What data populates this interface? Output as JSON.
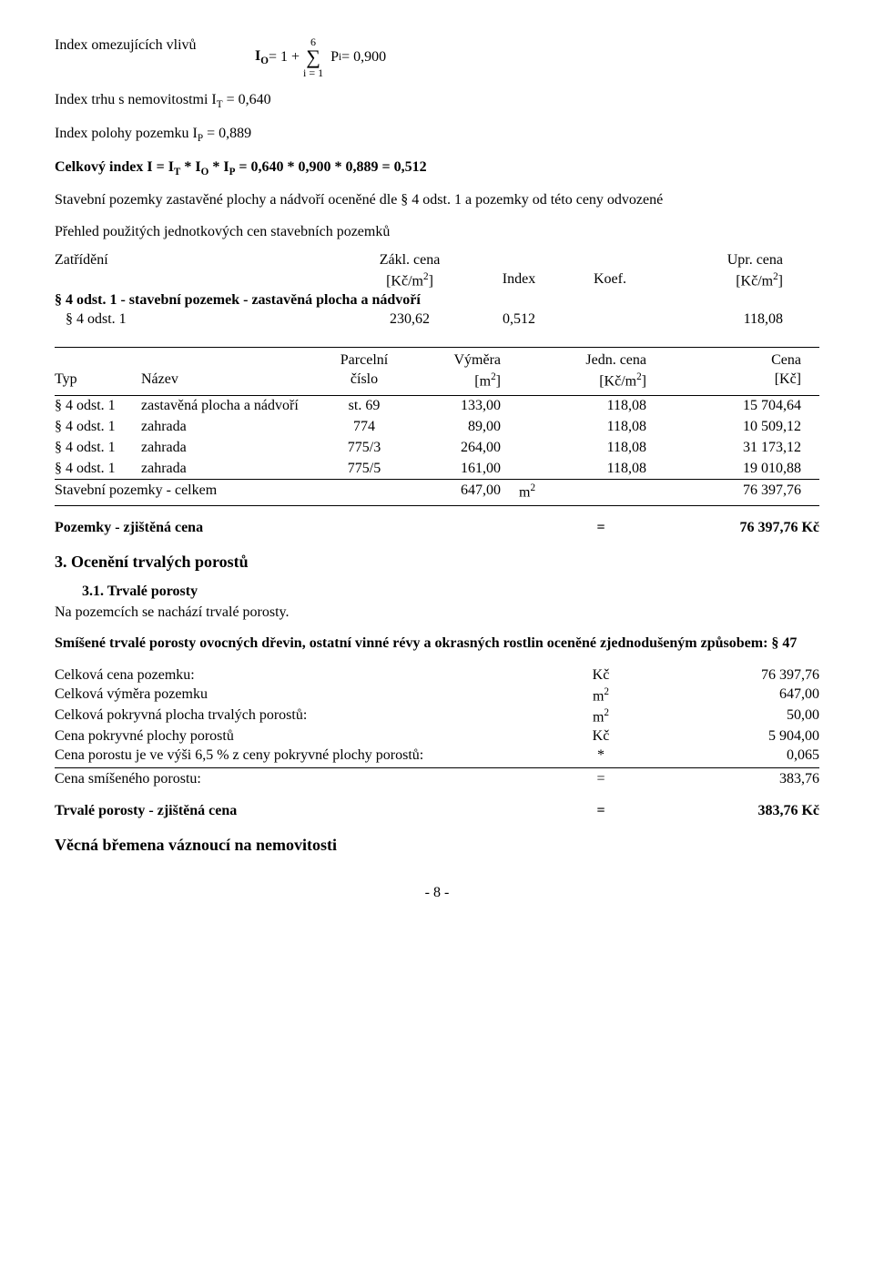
{
  "formula_io": {
    "label": "Index omezujících vlivů",
    "lhs": "I",
    "lhs_sub": "O",
    "eq": " = 1 + ",
    "sigma_top": "6",
    "sigma_bottom": "i = 1",
    "term": "P",
    "term_sub": "i",
    "rhs": " = 0,900"
  },
  "line_it": {
    "pre": "Index trhu s nemovitostmi I",
    "sub": "T",
    "post": " = 0,640"
  },
  "line_ip": {
    "pre": "Index polohy pozemku I",
    "sub": "P",
    "post": " = 0,889"
  },
  "line_celk": "Celkový index I = IT * IO * IP = 0,640 * 0,900 * 0,889 = 0,512",
  "line_celk_parts": {
    "p0": "Celkový index I = I",
    "s1": "T",
    "p1": " * I",
    "s2": "O",
    "p2": " * I",
    "s3": "P",
    "p3": " = 0,640 * 0,900 * 0,889 = 0,512"
  },
  "para_stav": "Stavební pozemky zastavěné plochy a nádvoří oceněné dle § 4 odst. 1 a pozemky od této ceny odvozené",
  "para_prehled": "Přehled použitých jednotkových cen stavebních pozemků",
  "t1": {
    "head": {
      "c0": "Zatřídění",
      "c1a": "Zákl. cena",
      "c1b": "[Kč/m",
      "c1sup": "2",
      "c1c": "]",
      "c2": "Index",
      "c3": "Koef.",
      "c4a": "Upr. cena",
      "c4b": "[Kč/m",
      "c4sup": "2",
      "c4c": "]"
    },
    "group": "§ 4 odst. 1 - stavební pozemek - zastavěná plocha a nádvoří",
    "row": {
      "c0": "   § 4 odst. 1",
      "c1": "230,62",
      "c2": "0,512",
      "c3": "",
      "c4": "118,08"
    }
  },
  "t2": {
    "head": {
      "c0": "Typ",
      "c1": "Název",
      "c2a": "Parcelní",
      "c2b": "číslo",
      "c3a": "Výměra",
      "c3b": "[m",
      "c3sup": "2",
      "c3c": "]",
      "c4a": "Jedn. cena",
      "c4b": "[Kč/m",
      "c4sup": "2",
      "c4c": "]",
      "c5a": "Cena",
      "c5b": "[Kč]"
    },
    "rows": [
      {
        "c0": "§ 4 odst. 1",
        "c1": "zastavěná plocha a nádvoří",
        "c2": "st. 69",
        "c3": "133,00",
        "c4": "118,08",
        "c5": "15 704,64"
      },
      {
        "c0": "§ 4 odst. 1",
        "c1": "zahrada",
        "c2": "774",
        "c3": "89,00",
        "c4": "118,08",
        "c5": "10 509,12"
      },
      {
        "c0": "§ 4 odst. 1",
        "c1": "zahrada",
        "c2": "775/3",
        "c3": "264,00",
        "c4": "118,08",
        "c5": "31 173,12"
      },
      {
        "c0": "§ 4 odst. 1",
        "c1": "zahrada",
        "c2": "775/5",
        "c3": "161,00",
        "c4": "118,08",
        "c5": "19 010,88"
      }
    ],
    "sum": {
      "label": "Stavební pozemky - celkem",
      "c3": "647,00",
      "unit": "m",
      "sup": "2",
      "c5": "76 397,76"
    }
  },
  "pozemky_line": {
    "label": "Pozemky - zjištěná cena",
    "eq": "=",
    "val": "76 397,76 Kč"
  },
  "sec3": "3. Ocenění trvalých porostů",
  "sec31": "3.1. Trvalé porosty",
  "sec31_text": "Na pozemcích se nachází trvalé porosty.",
  "smisene": "Smíšené trvalé porosty ovocných dřevin, ostatní vinné révy a okrasných rostlin oceněné zjednodušeným způsobem: § 47",
  "summary": {
    "rows": [
      {
        "c0": "Celková cena pozemku:",
        "c1": "Kč",
        "c2": "76 397,76"
      },
      {
        "c0": "Celková výměra pozemku",
        "c1": "m",
        "sup": "2",
        "c2": "647,00"
      },
      {
        "c0": "Celková pokryvná plocha trvalých porostů:",
        "c1": "m",
        "sup": "2",
        "c2": "50,00"
      },
      {
        "c0": "Cena pokryvné plochy porostů",
        "c1": "Kč",
        "c2": "5 904,00"
      },
      {
        "c0": "Cena porostu je ve výši 6,5 % z ceny pokryvné plochy porostů:",
        "c1": "*",
        "c2": "0,065"
      }
    ],
    "final": {
      "c0": "Cena smíšeného porostu:",
      "c1": "=",
      "c2": "383,76"
    }
  },
  "trvale_line": {
    "label": "Trvalé porosty - zjištěná cena",
    "eq": "=",
    "val": "383,76 Kč"
  },
  "vecna": "Věcná břemena váznoucí na nemovitosti",
  "page": "- 8 -"
}
